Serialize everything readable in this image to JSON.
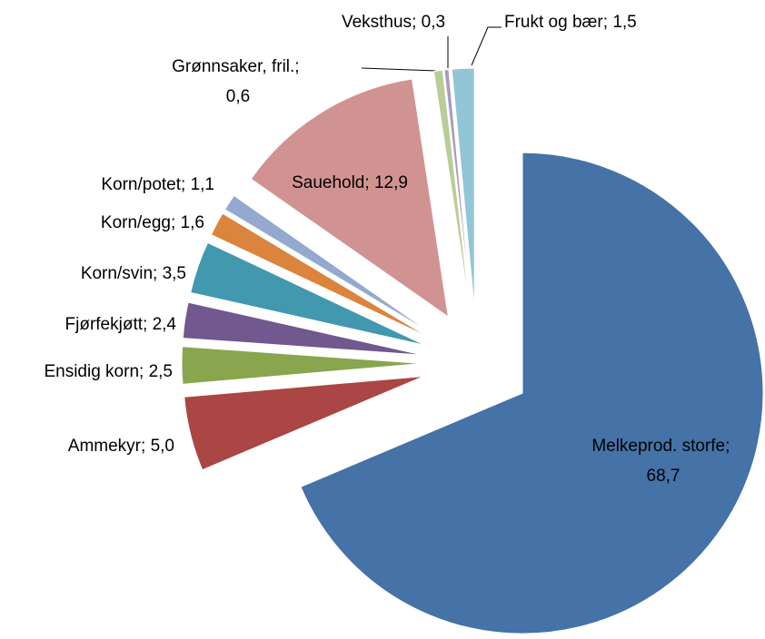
{
  "chart_data": {
    "type": "pie",
    "categories": [
      "Melkeprod. storfe",
      "Ammekyr",
      "Ensidig korn",
      "Fjørfekjøtt",
      "Korn/svin",
      "Korn/egg",
      "Korn/potet",
      "Sauehold",
      "Grønnsaker, fril.",
      "Veksthus",
      "Frukt og bær"
    ],
    "values": [
      68.7,
      5.0,
      2.5,
      2.4,
      3.5,
      1.6,
      1.1,
      12.9,
      0.6,
      0.3,
      1.5
    ],
    "value_labels": [
      "68,7",
      "5,0",
      "2,5",
      "2,4",
      "3,5",
      "1,6",
      "1,1",
      "12,9",
      "0,6",
      "0,3",
      "1,5"
    ],
    "label_separator": "; ",
    "colors": [
      "#4572a7",
      "#aa4643",
      "#89a54e",
      "#71588f",
      "#4198af",
      "#db843d",
      "#93a9cf",
      "#d19392",
      "#b9cd96",
      "#a99bbd",
      "#92c5d6"
    ]
  }
}
